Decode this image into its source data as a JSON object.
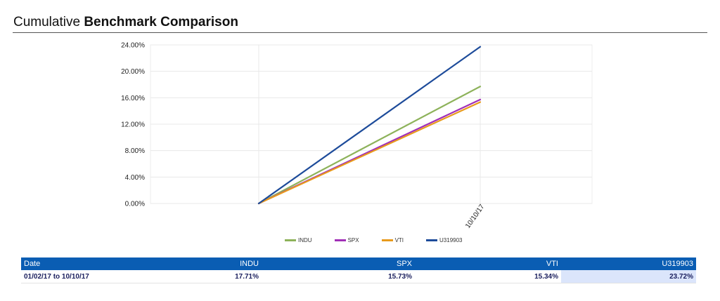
{
  "header": {
    "title_prefix": "Cumulative",
    "title_bold": "Benchmark Comparison"
  },
  "chart_data": {
    "type": "line",
    "x": [
      "01/02/17",
      "10/10/17"
    ],
    "x_tick_labels": [
      "10/10/17"
    ],
    "ylim": [
      0,
      24
    ],
    "y_ticks": [
      "0.00%",
      "4.00%",
      "8.00%",
      "12.00%",
      "16.00%",
      "20.00%",
      "24.00%"
    ],
    "grid": true,
    "legend_position": "bottom",
    "series": [
      {
        "name": "INDU",
        "color": "#8db25a",
        "values": [
          0,
          17.71
        ]
      },
      {
        "name": "SPX",
        "color": "#a12fb7",
        "values": [
          0,
          15.73
        ]
      },
      {
        "name": "VTI",
        "color": "#e89a1c",
        "values": [
          0,
          15.34
        ]
      },
      {
        "name": "U319903",
        "color": "#1d4b9a",
        "values": [
          0,
          23.72
        ]
      }
    ]
  },
  "table": {
    "headers": [
      "Date",
      "INDU",
      "SPX",
      "VTI",
      "U319903"
    ],
    "rows": [
      [
        "01/02/17 to 10/10/17",
        "17.71%",
        "15.73%",
        "15.34%",
        "23.72%"
      ]
    ]
  }
}
